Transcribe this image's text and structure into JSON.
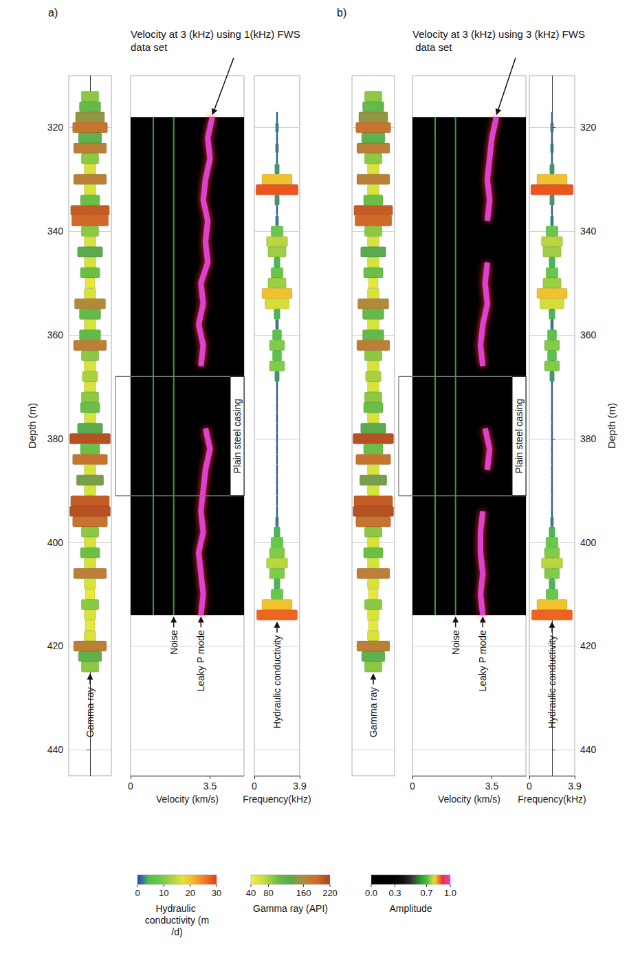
{
  "chart_data": {
    "type": "well_log",
    "depth_axis": {
      "title": "Depth (m)",
      "ylim": [
        310,
        445
      ],
      "yticks": [
        320,
        340,
        360,
        380,
        400,
        420,
        440
      ]
    },
    "velocity_axis": {
      "title": "Velocity (km/s)",
      "xlim": [
        0,
        5
      ],
      "xticks": [
        0,
        3.5
      ]
    },
    "frequency_axis": {
      "title": "Frequency(kHz)",
      "xlim": [
        0,
        3.9
      ],
      "xticks": [
        0,
        3.9
      ]
    },
    "gamma_ray": {
      "label": "Gamma ray",
      "depth": [
        314,
        316,
        318,
        320,
        322,
        324,
        326,
        328,
        330,
        332,
        334,
        336,
        338,
        340,
        342,
        344,
        346,
        348,
        350,
        352,
        354,
        356,
        358,
        360,
        362,
        364,
        366,
        368,
        370,
        372,
        374,
        376,
        378,
        380,
        382,
        384,
        386,
        388,
        390,
        392,
        394,
        396,
        398,
        400,
        402,
        404,
        406,
        408,
        410,
        412,
        414,
        416,
        418,
        420,
        422,
        424
      ],
      "values": [
        90,
        110,
        150,
        180,
        120,
        170,
        90,
        60,
        170,
        60,
        100,
        200,
        190,
        90,
        60,
        130,
        60,
        100,
        50,
        60,
        160,
        110,
        60,
        110,
        170,
        90,
        60,
        80,
        60,
        90,
        100,
        60,
        130,
        210,
        100,
        180,
        60,
        140,
        60,
        200,
        210,
        180,
        90,
        60,
        100,
        60,
        170,
        60,
        50,
        90,
        60,
        50,
        60,
        170,
        120,
        90
      ]
    },
    "hydraulic_conductivity": {
      "label": "Hydraulic conductivity",
      "depth": [
        318,
        320,
        322,
        324,
        326,
        328,
        330,
        332,
        334,
        336,
        338,
        340,
        342,
        344,
        346,
        348,
        350,
        352,
        354,
        356,
        358,
        360,
        362,
        364,
        366,
        368,
        370,
        372,
        374,
        376,
        378,
        380,
        382,
        384,
        386,
        388,
        390,
        392,
        394,
        396,
        398,
        400,
        402,
        404,
        406,
        408,
        410,
        412,
        414
      ],
      "values": [
        1,
        2,
        1,
        2,
        1,
        3,
        20,
        28,
        3,
        1,
        2,
        8,
        14,
        12,
        4,
        8,
        12,
        20,
        16,
        4,
        2,
        6,
        10,
        6,
        10,
        3,
        1,
        1,
        1,
        1,
        1,
        1,
        1,
        1,
        1,
        1,
        1,
        1,
        1,
        2,
        4,
        8,
        10,
        14,
        10,
        4,
        8,
        20,
        27
      ]
    },
    "casing": {
      "label": "Plain steel casing",
      "depth_range": [
        368,
        391
      ]
    },
    "panels": [
      {
        "letter": "a)",
        "title": "Velocity at 3 (kHz) using 1(kHz) FWS data set",
        "track_depth_range": [
          318,
          414
        ],
        "noise": {
          "label": "Noise",
          "velocity": [
            1.0,
            1.9
          ],
          "color": "#50c050"
        },
        "leaky_p_mode": {
          "label": "Leaky P mode",
          "color": "#e040d0",
          "depth": [
            318,
            322,
            326,
            330,
            334,
            338,
            342,
            346,
            350,
            354,
            358,
            362,
            366,
            370,
            374,
            378,
            382,
            386,
            390,
            394,
            398,
            402,
            406,
            410,
            414
          ],
          "velocity": [
            3.6,
            3.4,
            3.5,
            3.3,
            3.2,
            3.4,
            3.3,
            3.4,
            3.1,
            3.2,
            3.0,
            3.2,
            3.1,
            null,
            null,
            3.3,
            3.5,
            3.3,
            3.2,
            3.1,
            3.2,
            3.0,
            3.1,
            3.2,
            3.1
          ]
        }
      },
      {
        "letter": "b)",
        "title": "Velocity at 3 (kHz) using 3 (kHz) FWS data set",
        "track_depth_range": [
          318,
          414
        ],
        "noise": {
          "label": "Noise",
          "velocity": [
            1.0,
            1.9
          ],
          "color": "#50c050"
        },
        "leaky_p_mode": {
          "label": "Leaky P mode",
          "color": "#e040d0",
          "depth": [
            318,
            322,
            326,
            330,
            334,
            338,
            342,
            346,
            350,
            354,
            358,
            362,
            366,
            370,
            374,
            378,
            382,
            386,
            390,
            394,
            398,
            402,
            406,
            410,
            414
          ],
          "velocity": [
            3.7,
            3.5,
            3.4,
            3.3,
            3.4,
            3.3,
            null,
            3.3,
            3.2,
            3.3,
            3.1,
            3.0,
            3.1,
            null,
            null,
            3.2,
            3.4,
            3.3,
            null,
            3.1,
            3.0,
            3.0,
            3.1,
            3.0,
            3.1
          ]
        }
      }
    ],
    "colorbars": [
      {
        "title": "Hydraulic conductivity (m/d)",
        "range": [
          0,
          30
        ],
        "ticks": [
          0,
          10,
          20,
          30
        ],
        "colors": [
          "#2a3fbf",
          "#4cbf4c",
          "#6cc84a",
          "#a8d240",
          "#e6e135",
          "#f4b22a",
          "#f07722",
          "#e53a18"
        ]
      },
      {
        "title": "Gamma ray (API)",
        "range": [
          40,
          220
        ],
        "ticks": [
          40,
          80,
          160,
          220
        ],
        "colors": [
          "#f5ee3a",
          "#c8dc3c",
          "#6cbf45",
          "#5aaa50",
          "#b08a3a",
          "#d2692a",
          "#a8451c"
        ]
      },
      {
        "title": "Amplitude",
        "range": [
          0,
          1
        ],
        "ticks": [
          {
            "value": 0,
            "label": "0.0"
          },
          {
            "value": 0.3,
            "label": "0.3"
          },
          {
            "value": 0.7,
            "label": "0.7"
          },
          {
            "value": 1,
            "label": "1.0"
          }
        ],
        "colors": [
          "#000000",
          "#000000",
          "#000000",
          "#050505",
          "#101010",
          "#303030",
          "#2a8a2a",
          "#40c040",
          "#e8e030",
          "#f03030",
          "#e040e0"
        ]
      }
    ]
  }
}
